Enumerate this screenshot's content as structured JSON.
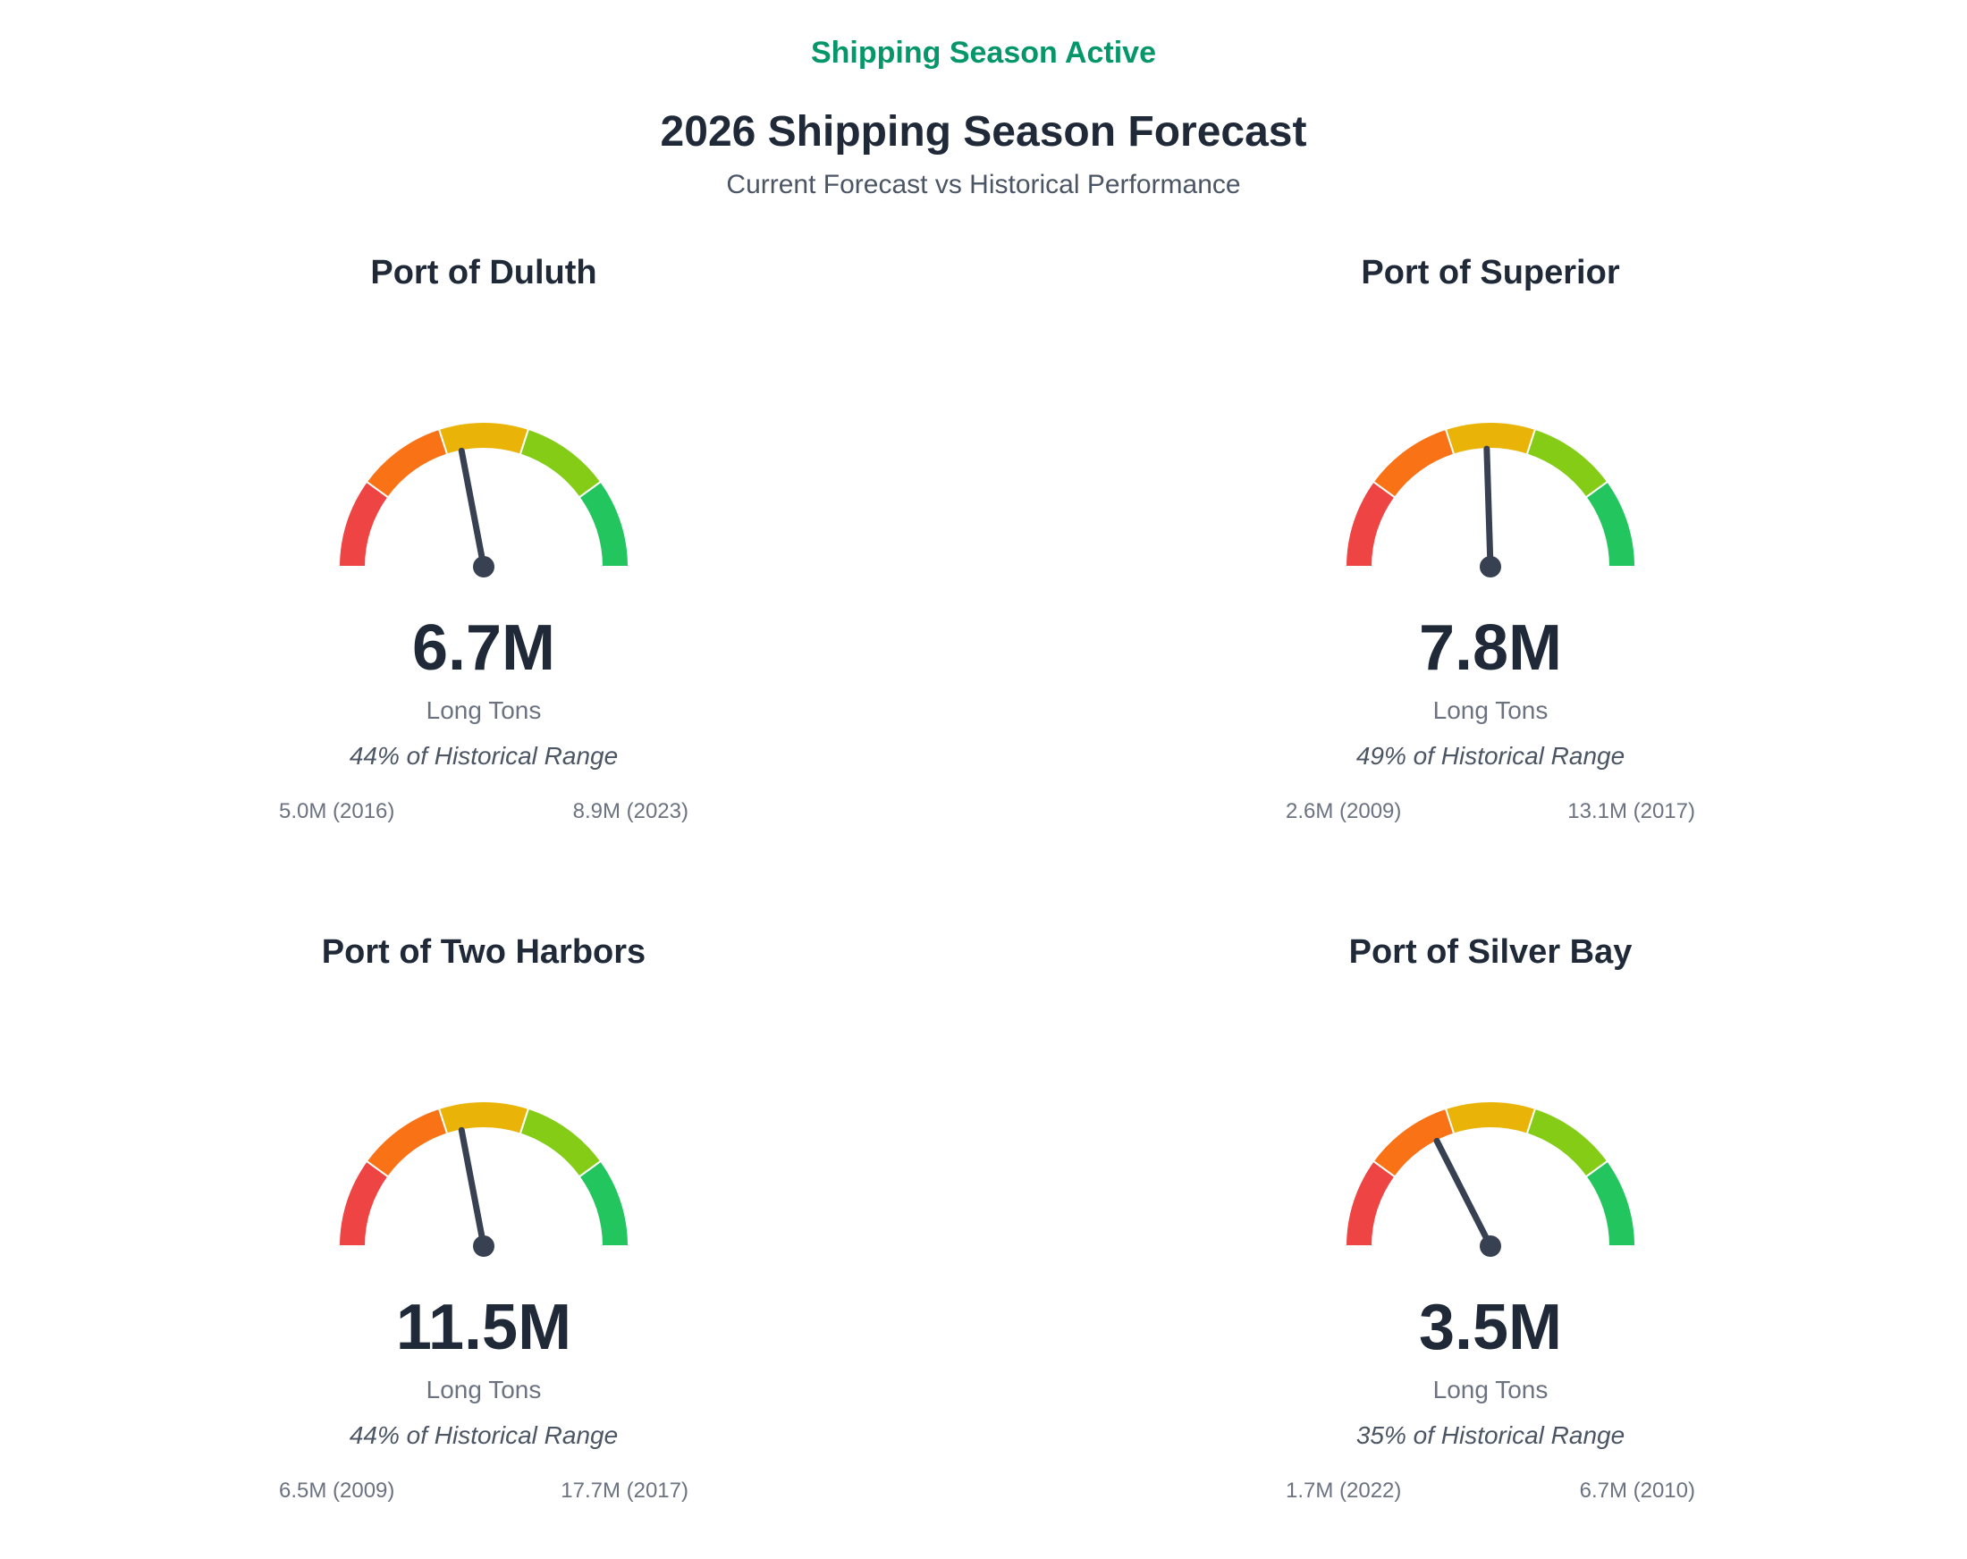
{
  "status": "Shipping Season Active",
  "title": "2026 Shipping Season Forecast",
  "subtitle": "Current Forecast vs Historical Performance",
  "colors": {
    "status": "#059669",
    "needle": "#374151",
    "zones": [
      "#ef4444",
      "#f97316",
      "#eab308",
      "#84cc16",
      "#22c55e"
    ]
  },
  "chart_data": {
    "type": "gauge",
    "title": "2026 Shipping Season Forecast",
    "unit": "Long Tons",
    "gauges": [
      {
        "name": "Port of Duluth",
        "value_label": "6.7M",
        "unit": "Long Tons",
        "pct_label": "44% of Historical Range",
        "min_label": "5.0M (2016)",
        "max_label": "8.9M (2023)",
        "value": 6.7,
        "min": 5.0,
        "max": 8.9,
        "percent": 44
      },
      {
        "name": "Port of Superior",
        "value_label": "7.8M",
        "unit": "Long Tons",
        "pct_label": "49% of Historical Range",
        "min_label": "2.6M (2009)",
        "max_label": "13.1M (2017)",
        "value": 7.8,
        "min": 2.6,
        "max": 13.1,
        "percent": 49
      },
      {
        "name": "Port of Two Harbors",
        "value_label": "11.5M",
        "unit": "Long Tons",
        "pct_label": "44% of Historical Range",
        "min_label": "6.5M (2009)",
        "max_label": "17.7M (2017)",
        "value": 11.5,
        "min": 6.5,
        "max": 17.7,
        "percent": 44
      },
      {
        "name": "Port of Silver Bay",
        "value_label": "3.5M",
        "unit": "Long Tons",
        "pct_label": "35% of Historical Range",
        "min_label": "1.7M (2022)",
        "max_label": "6.7M (2010)",
        "value": 3.5,
        "min": 1.7,
        "max": 6.7,
        "percent": 35
      }
    ]
  }
}
